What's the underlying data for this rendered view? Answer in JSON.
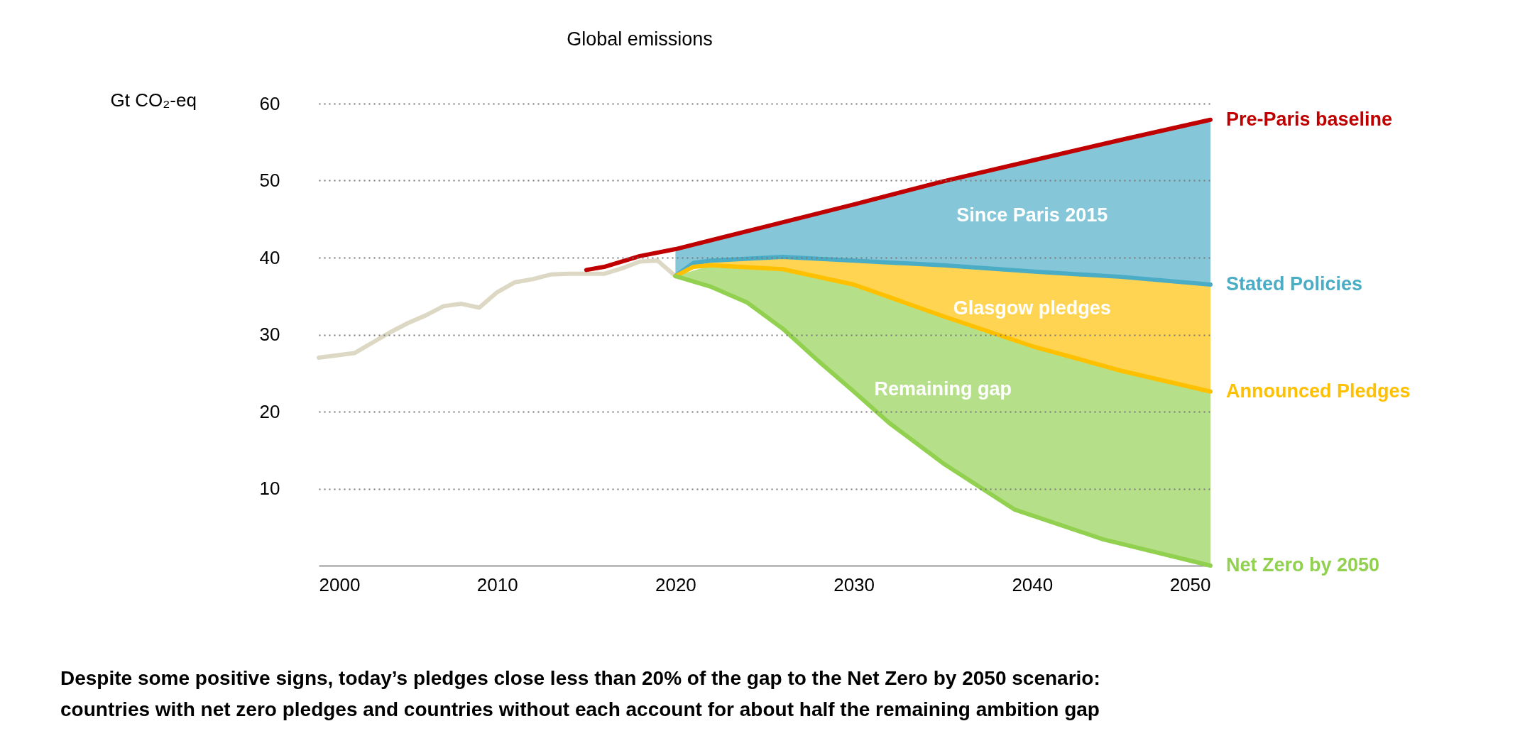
{
  "chart_data": {
    "type": "line",
    "title": "Global emissions",
    "ylabel": "Gt CO₂-eq",
    "xlim": [
      2000,
      2050
    ],
    "xticks": [
      2000,
      2010,
      2020,
      2030,
      2040,
      2050
    ],
    "ylim": [
      0,
      60
    ],
    "yticks": [
      10,
      20,
      30,
      40,
      50,
      60
    ],
    "grid": "y",
    "legend": false,
    "series": [
      {
        "color": "#dcd8c4",
        "x": [
          2000,
          2002,
          2004,
          2005,
          2006,
          2007,
          2008,
          2009,
          2010,
          2011,
          2012,
          2013,
          2014,
          2015,
          2016,
          2017,
          2018,
          2019,
          2020
        ],
        "values": [
          27.0,
          27.6,
          30.3,
          31.5,
          32.5,
          33.7,
          34.0,
          33.5,
          35.5,
          36.8,
          37.2,
          37.8,
          37.9,
          37.9,
          37.9,
          38.6,
          39.5,
          39.6,
          37.6
        ]
      },
      {
        "name": "Pre-Paris baseline",
        "color": "#c00000",
        "x": [
          2015,
          2016,
          2018,
          2020,
          2025,
          2030,
          2035,
          2040,
          2045,
          2050
        ],
        "values": [
          38.4,
          38.8,
          40.2,
          41.1,
          44.0,
          46.9,
          49.9,
          52.6,
          55.3,
          57.9
        ]
      },
      {
        "name": "Stated Policies",
        "color": "#4bacc6",
        "x": [
          2020,
          2021,
          2022,
          2026,
          2030,
          2035,
          2040,
          2045,
          2050
        ],
        "values": [
          37.6,
          39.3,
          39.6,
          40.1,
          39.6,
          39.0,
          38.2,
          37.5,
          36.5
        ],
        "lower": [
          37.6,
          39.3,
          39.6,
          40.1,
          39.6,
          39.0,
          38.2,
          37.5,
          36.5
        ],
        "upper": [
          41.1,
          41.7,
          42.3,
          44.6,
          46.9,
          49.9,
          52.6,
          55.3,
          57.9
        ]
      },
      {
        "name": "Announced Pledges",
        "color": "#ffc000",
        "x": [
          2020,
          2021,
          2022,
          2026,
          2030,
          2035,
          2040,
          2045,
          2050
        ],
        "values": [
          37.6,
          38.8,
          39.0,
          38.5,
          36.5,
          32.4,
          28.5,
          25.3,
          22.6
        ],
        "lower": [
          37.6,
          38.8,
          39.0,
          38.5,
          36.5,
          32.4,
          28.5,
          25.3,
          22.6
        ],
        "upper": [
          37.6,
          39.3,
          39.6,
          40.1,
          39.6,
          39.0,
          38.2,
          37.5,
          36.5
        ]
      },
      {
        "name": "Net Zero by 2050",
        "color": "#92d050",
        "x": [
          2020,
          2022,
          2024,
          2026,
          2028,
          2030,
          2032,
          2035,
          2039,
          2044,
          2050
        ],
        "values": [
          37.6,
          36.2,
          34.2,
          30.8,
          26.6,
          22.6,
          18.5,
          13.3,
          7.3,
          3.4,
          0
        ],
        "lower": [
          37.6,
          36.2,
          34.2,
          30.8,
          26.6,
          22.6,
          18.5,
          13.3,
          7.3,
          3.4,
          0
        ],
        "upper": [
          37.6,
          39.0,
          38.8,
          38.5,
          37.5,
          36.5,
          34.9,
          32.4,
          29.3,
          25.9,
          22.6
        ]
      }
    ],
    "annotations": [
      "Since Paris 2015",
      "Glasgow pledges",
      "Remaining gap",
      "Despite some positive signs, today’s pledges close less than 20% of the gap to the Net Zero by 2050 scenario: countries with net zero pledges and countries without each account for about half the remaining ambition gap"
    ]
  }
}
